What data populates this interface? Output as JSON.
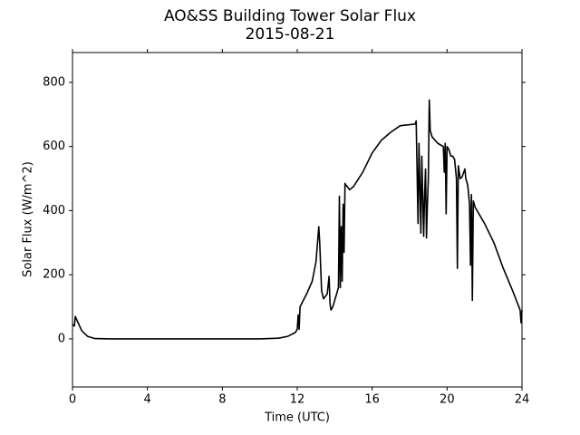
{
  "chart_data": {
    "type": "line",
    "title": "AO&SS Building Tower Solar Flux",
    "subtitle": "2015-08-21",
    "x_label": "Time (UTC)",
    "y_label": "Solar Flux (W/m^2)",
    "xlim": [
      0,
      24
    ],
    "xticks": [
      0,
      4,
      8,
      12,
      16,
      20,
      24
    ],
    "ylim": [
      -150,
      893
    ],
    "yticks": [
      0,
      200,
      400,
      600,
      800
    ],
    "grid": false,
    "series": [
      {
        "color": "#000000",
        "x": [
          0,
          0.1,
          0.15,
          0.3,
          0.5,
          0.8,
          1.2,
          2,
          4,
          8,
          10,
          11,
          11.5,
          11.9,
          12.0,
          12.05,
          12.1,
          12.15,
          12.5,
          12.8,
          13.0,
          13.15,
          13.2,
          13.3,
          13.4,
          13.6,
          13.7,
          13.75,
          13.8,
          13.9,
          14.1,
          14.2,
          14.25,
          14.3,
          14.35,
          14.4,
          14.45,
          14.5,
          14.55,
          14.6,
          14.8,
          15,
          15.5,
          16,
          16.5,
          17,
          17.5,
          18,
          18.3,
          18.35,
          18.45,
          18.5,
          18.6,
          18.65,
          18.7,
          18.75,
          18.8,
          18.85,
          18.9,
          18.95,
          19.0,
          19.05,
          19.1,
          19.2,
          19.5,
          19.8,
          19.85,
          19.9,
          19.95,
          20.0,
          20.1,
          20.2,
          20.3,
          20.4,
          20.5,
          20.55,
          20.6,
          20.7,
          20.8,
          20.95,
          21.0,
          21.1,
          21.2,
          21.25,
          21.3,
          21.35,
          21.4,
          21.5,
          22,
          22.5,
          23,
          23.5,
          23.9,
          23.95,
          24.0
        ],
        "values": [
          45,
          40,
          70,
          50,
          25,
          8,
          1,
          0,
          0,
          0,
          0,
          2,
          8,
          20,
          30,
          75,
          30,
          100,
          140,
          180,
          240,
          350,
          300,
          150,
          125,
          140,
          195,
          110,
          90,
          100,
          140,
          160,
          445,
          160,
          350,
          180,
          420,
          270,
          485,
          480,
          465,
          475,
          520,
          580,
          620,
          645,
          665,
          668,
          670,
          680,
          360,
          610,
          330,
          570,
          440,
          320,
          450,
          530,
          315,
          420,
          500,
          745,
          650,
          630,
          610,
          600,
          520,
          610,
          390,
          600,
          590,
          570,
          570,
          560,
          500,
          220,
          540,
          500,
          505,
          530,
          500,
          480,
          420,
          230,
          450,
          120,
          430,
          410,
          360,
          300,
          220,
          150,
          90,
          50,
          90
        ]
      }
    ]
  }
}
